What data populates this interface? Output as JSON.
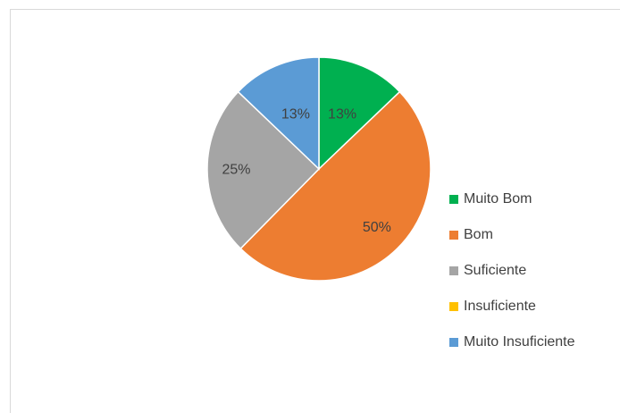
{
  "chart_data": {
    "type": "pie",
    "categories": [
      "Muito Bom",
      "Bom",
      "Suficiente",
      "Insuficiente",
      "Muito Insuficiente"
    ],
    "values": [
      13,
      50,
      25,
      0,
      13
    ],
    "value_labels": [
      "13%",
      "50%",
      "25%",
      null,
      "13%"
    ],
    "colors": [
      "#00b050",
      "#ed7d31",
      "#a5a5a5",
      "#ffc000",
      "#5b9bd5"
    ],
    "legend": "right"
  }
}
